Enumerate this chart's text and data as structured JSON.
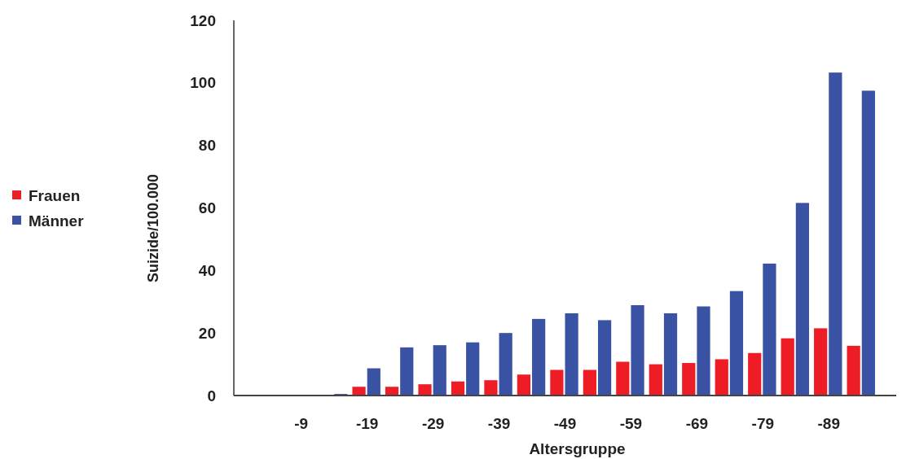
{
  "chart_data": {
    "type": "bar",
    "xlabel": "Altersgruppe",
    "ylabel": "Suizide/100.000",
    "categories": [
      null,
      "-9",
      null,
      "-19",
      null,
      "-29",
      null,
      "-39",
      null,
      "-49",
      null,
      "-59",
      null,
      "-69",
      null,
      "-79",
      null,
      "-89",
      null
    ],
    "series": [
      {
        "name": "Frauen",
        "color": "#ee1c25",
        "values": [
          0,
          0,
          0,
          2.8,
          2.8,
          3.6,
          4.5,
          4.9,
          6.7,
          8.2,
          8.2,
          10.8,
          10,
          10.4,
          11.6,
          13.6,
          18.3,
          21.5,
          15.9
        ]
      },
      {
        "name": "Männer",
        "color": "#3a52a4",
        "values": [
          0,
          0,
          0.5,
          8.7,
          15.4,
          16.1,
          17,
          20,
          24.5,
          26.3,
          24.1,
          28.9,
          26.3,
          28.5,
          33.4,
          42.2,
          61.6,
          103.3,
          97.5
        ]
      }
    ],
    "ylim": [
      0,
      120
    ],
    "yticks": [
      0,
      20,
      40,
      60,
      80,
      100,
      120
    ],
    "grid": false,
    "legend": "left"
  }
}
